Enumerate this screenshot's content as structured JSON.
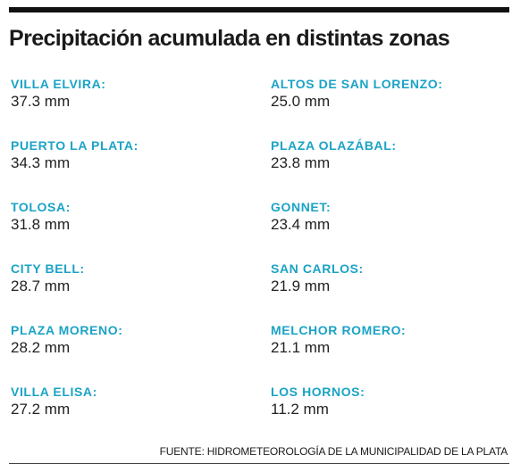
{
  "title": "Precipitación acumulada en distintas zonas",
  "colors": {
    "zone_name": "#1ba3c6",
    "value_text": "#222222",
    "rule": "#111111"
  },
  "zones_left": [
    {
      "name": "VILLA ELVIRA:",
      "value": "37.3 mm"
    },
    {
      "name": "PUERTO LA PLATA:",
      "value": "34.3 mm"
    },
    {
      "name": "TOLOSA:",
      "value": "31.8 mm"
    },
    {
      "name": "CITY BELL:",
      "value": "28.7 mm"
    },
    {
      "name": "PLAZA MORENO:",
      "value": "28.2 mm"
    },
    {
      "name": "VILLA ELISA:",
      "value": "27.2 mm"
    }
  ],
  "zones_right": [
    {
      "name": "ALTOS DE SAN LORENZO:",
      "value": "25.0 mm"
    },
    {
      "name": "PLAZA OLAZÁBAL:",
      "value": "23.8 mm"
    },
    {
      "name": "GONNET:",
      "value": "23.4 mm"
    },
    {
      "name": "SAN CARLOS:",
      "value": "21.9 mm"
    },
    {
      "name": "MELCHOR ROMERO:",
      "value": "21.1 mm"
    },
    {
      "name": "LOS HORNOS:",
      "value": "11.2 mm"
    }
  ],
  "source": "FUENTE: HIDROMETEOROLOGÍA DE LA MUNICIPALIDAD DE LA PLATA"
}
